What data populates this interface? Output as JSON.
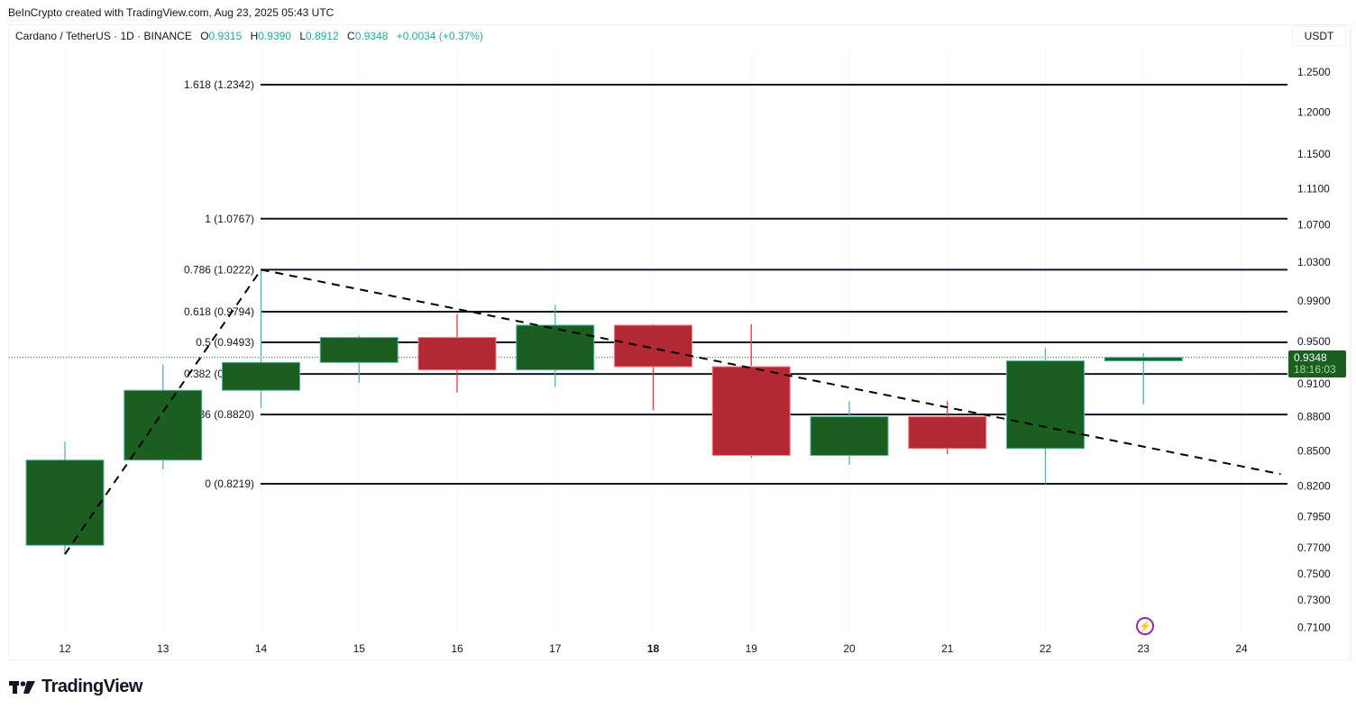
{
  "credit": "BeInCrypto created with TradingView.com, Aug 23, 2025 05:43 UTC",
  "legend": {
    "symbol": "Cardano / TetherUS · 1D · BINANCE",
    "open_label": "O",
    "open": "0.9315",
    "high_label": "H",
    "high": "0.9390",
    "low_label": "L",
    "low": "0.8912",
    "close_label": "C",
    "close": "0.9348",
    "change": "+0.0034 (+0.37%)"
  },
  "unit_button": "USDT",
  "price_tag": {
    "price": "0.9348",
    "countdown": "18:16:03"
  },
  "logo_text": "TradingView",
  "colors": {
    "up_body": "#1b5e20",
    "up_border": "#4db6ac",
    "down_body": "#b22833",
    "down_border": "#f77c80",
    "fib_line": "#131722",
    "trend_line": "#000000",
    "last_price_line": "#1b5e20",
    "accent_text": "#22ab94",
    "alert_icon": "#9c27b0"
  },
  "chart_data": {
    "type": "candlestick",
    "title": "Cardano / TetherUS · 1D · BINANCE",
    "scale": "log",
    "ylim": [
      0.695,
      1.27
    ],
    "x_ticks": [
      {
        "label": "12",
        "bold": false
      },
      {
        "label": "13",
        "bold": false
      },
      {
        "label": "14",
        "bold": false
      },
      {
        "label": "15",
        "bold": false
      },
      {
        "label": "16",
        "bold": false
      },
      {
        "label": "17",
        "bold": false
      },
      {
        "label": "18",
        "bold": true
      },
      {
        "label": "19",
        "bold": false
      },
      {
        "label": "20",
        "bold": false
      },
      {
        "label": "21",
        "bold": false
      },
      {
        "label": "22",
        "bold": false
      },
      {
        "label": "23",
        "bold": false
      },
      {
        "label": "24",
        "bold": false
      }
    ],
    "y_ticks": [
      "1.2500",
      "1.2000",
      "1.1500",
      "1.1100",
      "1.0700",
      "1.0300",
      "0.9900",
      "0.9500",
      "0.9100",
      "0.8800",
      "0.8500",
      "0.8200",
      "0.7950",
      "0.7700",
      "0.7500",
      "0.7300",
      "0.7100"
    ],
    "candles": [
      {
        "date": "12",
        "open": 0.772,
        "high": 0.858,
        "low": 0.765,
        "close": 0.842
      },
      {
        "date": "13",
        "open": 0.842,
        "high": 0.928,
        "low": 0.834,
        "close": 0.904
      },
      {
        "date": "14",
        "open": 0.904,
        "high": 1.0222,
        "low": 0.888,
        "close": 0.93
      },
      {
        "date": "15",
        "open": 0.93,
        "high": 0.956,
        "low": 0.911,
        "close": 0.954
      },
      {
        "date": "16",
        "open": 0.954,
        "high": 0.977,
        "low": 0.902,
        "close": 0.923
      },
      {
        "date": "17",
        "open": 0.923,
        "high": 0.986,
        "low": 0.907,
        "close": 0.966
      },
      {
        "date": "18",
        "open": 0.966,
        "high": 0.967,
        "low": 0.886,
        "close": 0.926
      },
      {
        "date": "19",
        "open": 0.926,
        "high": 0.967,
        "low": 0.844,
        "close": 0.846
      },
      {
        "date": "20",
        "open": 0.846,
        "high": 0.894,
        "low": 0.838,
        "close": 0.88
      },
      {
        "date": "21",
        "open": 0.88,
        "high": 0.894,
        "low": 0.847,
        "close": 0.852
      },
      {
        "date": "22",
        "open": 0.852,
        "high": 0.944,
        "low": 0.8219,
        "close": 0.9315
      },
      {
        "date": "23",
        "open": 0.9315,
        "high": 0.939,
        "low": 0.8912,
        "close": 0.9348
      }
    ],
    "fib_levels": [
      {
        "label": "1.618 (1.2342)",
        "ratio": 1.618,
        "price": 1.2342
      },
      {
        "label": "1 (1.0767)",
        "ratio": 1,
        "price": 1.0767
      },
      {
        "label": "0.786 (1.0222)",
        "ratio": 0.786,
        "price": 1.0222
      },
      {
        "label": "0.618 (0.9794)",
        "ratio": 0.618,
        "price": 0.9794
      },
      {
        "label": "0.5 (0.9493)",
        "ratio": 0.5,
        "price": 0.9493
      },
      {
        "label": "0.382 (0.9192)",
        "ratio": 0.382,
        "price": 0.9192
      },
      {
        "label": "0.236 (0.8820)",
        "ratio": 0.236,
        "price": 0.882
      },
      {
        "label": "0 (0.8219)",
        "ratio": 0,
        "price": 0.8219
      }
    ],
    "trend_lines": [
      {
        "from": {
          "date": "12",
          "price": 0.765
        },
        "to": {
          "date": "14",
          "price": 1.0222
        },
        "style": "dashed"
      },
      {
        "from": {
          "date": "14",
          "price": 1.0222
        },
        "to": {
          "date": "24.4",
          "price": 0.83
        },
        "style": "dashed"
      }
    ],
    "last_price": 0.9348
  }
}
